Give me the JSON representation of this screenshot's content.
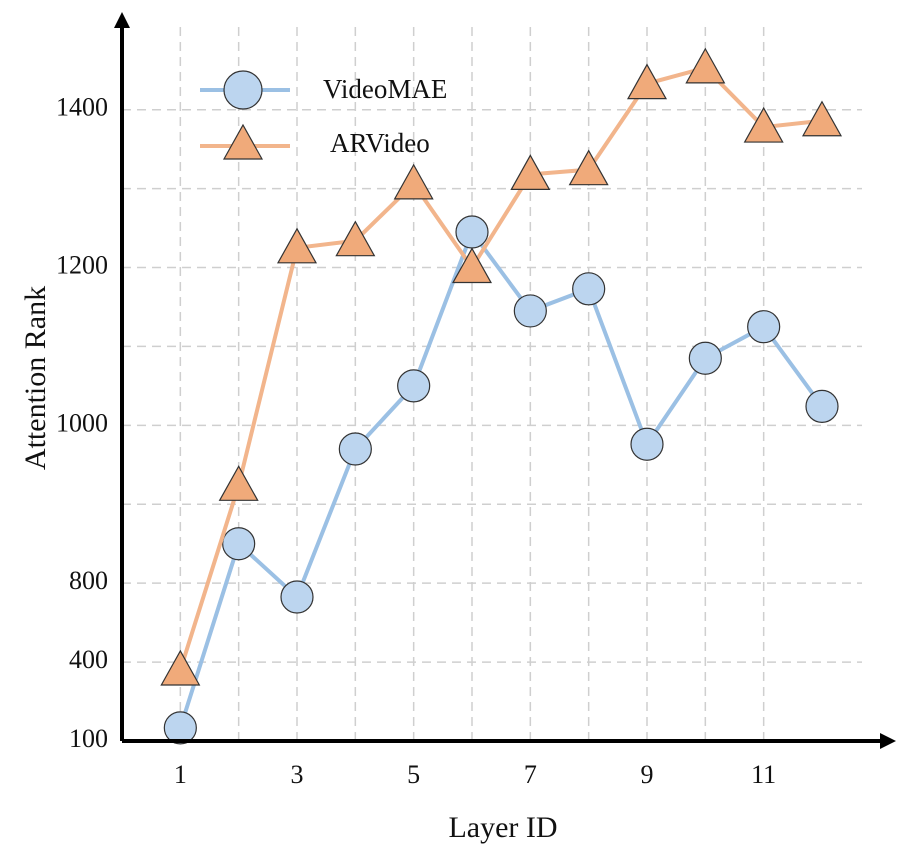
{
  "chart_data": {
    "type": "line",
    "x_label": "Layer ID",
    "y_label": "Attention Rank",
    "x": [
      1,
      2,
      3,
      4,
      5,
      6,
      7,
      8,
      9,
      10,
      11,
      12
    ],
    "series": [
      {
        "name": "VideoMAE",
        "color": "#9bc0e4",
        "marker_color": "#bcd5ef",
        "marker": "circle",
        "values": [
          150,
          850,
          730,
          970,
          1050,
          1245,
          1145,
          1173,
          976,
          1085,
          1125,
          1024
        ]
      },
      {
        "name": "ARVideo",
        "color": "#f2b58c",
        "marker_color": "#f0aa7a",
        "marker": "triangle",
        "values": [
          370,
          924,
          1225,
          1234,
          1306,
          1200,
          1318,
          1324,
          1433,
          1453,
          1378,
          1386
        ]
      }
    ],
    "xlim": [
      0,
      13.2
    ],
    "xticks": [
      1,
      3,
      5,
      7,
      9,
      11
    ],
    "xgrid": [
      1,
      2,
      3,
      4,
      5,
      6,
      7,
      8,
      9,
      10,
      11
    ],
    "ylim": [
      100,
      1520
    ],
    "yticks": [
      100,
      400,
      800,
      1000,
      1200,
      1400
    ],
    "yscale": "broken",
    "ygrid": [
      100,
      400,
      800,
      900,
      1000,
      1100,
      1200,
      1300,
      1400
    ],
    "grid": true,
    "legend": "upper left"
  }
}
